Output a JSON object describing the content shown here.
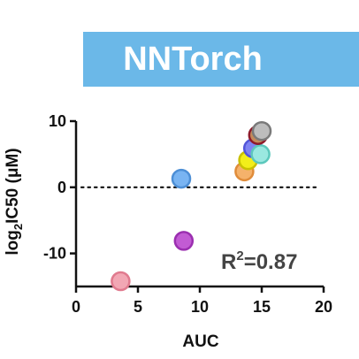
{
  "header": {
    "title": "NNTorch"
  },
  "colors": {
    "banner": "#6bb8e8",
    "axis": "#111111",
    "annotation": "#444444"
  },
  "chart_data": {
    "type": "scatter",
    "title": "",
    "xlabel": "AUC",
    "ylabel_main": "log",
    "ylabel_sub": "2",
    "ylabel_rest": "IC50 (μM)",
    "xlim": [
      0,
      20
    ],
    "ylim": [
      -15,
      10
    ],
    "xticks": [
      0,
      5,
      10,
      15,
      20
    ],
    "yticks": [
      10,
      0,
      -10
    ],
    "reference_line": {
      "y": 0,
      "style": "dotted"
    },
    "annotation": {
      "base": "R",
      "sup": "2",
      "rest": "=0.87"
    },
    "points": [
      {
        "x": 3.6,
        "y": -14.2,
        "fill": "#f2a7b4",
        "stroke": "#e07a8e"
      },
      {
        "x": 8.7,
        "y": -8.1,
        "fill": "#c25bd4",
        "stroke": "#9b2fb0"
      },
      {
        "x": 8.5,
        "y": 1.3,
        "fill": "#79b4f2",
        "stroke": "#4d8fd6"
      },
      {
        "x": 13.6,
        "y": 2.4,
        "fill": "#f5b26b",
        "stroke": "#e08c3a"
      },
      {
        "x": 13.9,
        "y": 4.1,
        "fill": "#f2ee1a",
        "stroke": "#c9c100"
      },
      {
        "x": 14.3,
        "y": 5.9,
        "fill": "#7f84f2",
        "stroke": "#5255d9"
      },
      {
        "x": 14.9,
        "y": 5.0,
        "fill": "#9ae8e0",
        "stroke": "#5cc8bc"
      },
      {
        "x": 14.7,
        "y": 7.9,
        "fill": "#c48a5a",
        "stroke": "#8e1a2a"
      },
      {
        "x": 15.0,
        "y": 8.5,
        "fill": "#bdbdbd",
        "stroke": "#7a7a7a"
      }
    ]
  }
}
